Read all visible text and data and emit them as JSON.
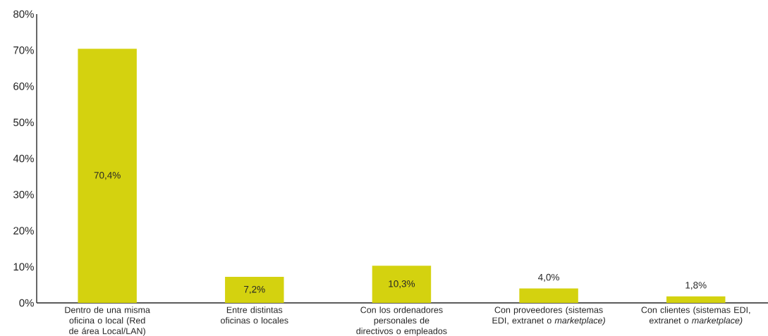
{
  "chart_data": {
    "type": "bar",
    "categories": [
      "Dentro de una misma oficina o local (Red de área Local/LAN)",
      "Entre distintas oficinas o locales",
      "Con los ordenadores personales de directivos o empleados",
      "Con proveedores (sistemas EDI, extranet o *marketplace)*",
      "Con clientes (sistemas EDI, extranet o *marketplace)*"
    ],
    "values": [
      70.4,
      7.2,
      10.3,
      4.0,
      1.8
    ],
    "value_labels": [
      "70,4%",
      "7,2%",
      "10,3%",
      "4,0%",
      "1,8%"
    ],
    "color": "#d4d20f",
    "ylim": [
      0,
      80
    ],
    "yticks": [
      {
        "value": 0,
        "label": "0%"
      },
      {
        "value": 10,
        "label": "10%"
      },
      {
        "value": 20,
        "label": "20%"
      },
      {
        "value": 30,
        "label": "30%"
      },
      {
        "value": 40,
        "label": "40%"
      },
      {
        "value": 50,
        "label": "50%"
      },
      {
        "value": 60,
        "label": "60%"
      },
      {
        "value": 70,
        "label": "70%"
      },
      {
        "value": 80,
        "label": "80%"
      }
    ],
    "grid": false
  }
}
